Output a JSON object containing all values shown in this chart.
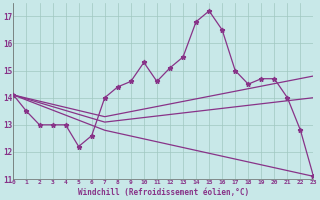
{
  "xlabel": "Windchill (Refroidissement éolien,°C)",
  "xlim": [
    0,
    23
  ],
  "ylim": [
    11,
    17.5
  ],
  "yticks": [
    11,
    12,
    13,
    14,
    15,
    16,
    17
  ],
  "xticks": [
    0,
    1,
    2,
    3,
    4,
    5,
    6,
    7,
    8,
    9,
    10,
    11,
    12,
    13,
    14,
    15,
    16,
    17,
    18,
    19,
    20,
    21,
    22,
    23
  ],
  "xtick_labels": [
    "0",
    "1",
    "2",
    "3",
    "4",
    "5",
    "6",
    "7",
    "8",
    "9",
    "10",
    "11",
    "12",
    "13",
    "14",
    "15",
    "16",
    "17",
    "18",
    "19",
    "20",
    "21",
    "22",
    "23"
  ],
  "background_color": "#c8e8e8",
  "grid_color": "#a0c8c0",
  "line_color": "#883388",
  "line1_x": [
    0,
    1,
    2,
    3,
    4,
    5,
    6,
    7,
    8,
    9,
    10,
    11,
    12,
    13,
    14,
    15,
    16,
    17,
    18,
    19,
    20,
    21,
    22,
    23
  ],
  "line1_y": [
    14.1,
    13.5,
    13.0,
    13.0,
    13.0,
    12.2,
    12.6,
    14.0,
    14.4,
    14.6,
    15.3,
    14.6,
    15.1,
    15.5,
    16.8,
    17.2,
    16.5,
    15.0,
    14.5,
    14.7,
    14.7,
    14.0,
    12.8,
    11.1
  ],
  "line2_x": [
    0,
    7,
    23
  ],
  "line2_y": [
    14.1,
    13.3,
    14.8
  ],
  "line3_x": [
    0,
    7,
    23
  ],
  "line3_y": [
    14.1,
    13.1,
    14.0
  ],
  "line4_x": [
    0,
    7,
    23
  ],
  "line4_y": [
    14.1,
    12.8,
    11.1
  ]
}
